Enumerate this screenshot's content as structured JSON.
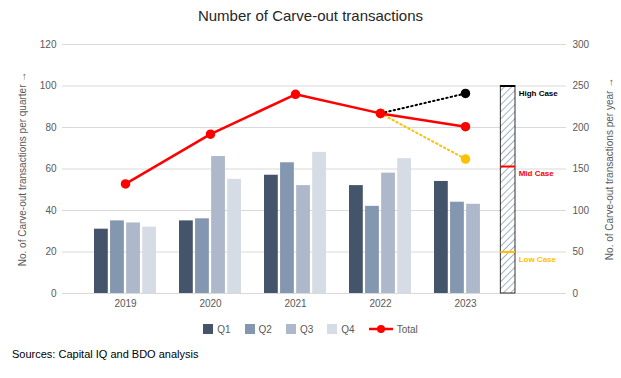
{
  "chart_data": {
    "type": "bar",
    "title": "Number of Carve-out transactions",
    "caption": "Sources: Capital IQ and BDO analysis",
    "ylabel": "No. of Carve-out transactions per quarter",
    "y2label": "No. of Carve-out transactions per year",
    "categories": [
      "2019",
      "2020",
      "2021",
      "2022",
      "2023"
    ],
    "series": [
      {
        "name": "Q1",
        "type": "bar",
        "color": "#44546a",
        "values": [
          31,
          35,
          57,
          52,
          54
        ]
      },
      {
        "name": "Q2",
        "type": "bar",
        "color": "#8497b0",
        "values": [
          35,
          36,
          63,
          42,
          44
        ]
      },
      {
        "name": "Q3",
        "type": "bar",
        "color": "#adb9ca",
        "values": [
          34,
          66,
          52,
          58,
          43
        ]
      },
      {
        "name": "Q4",
        "type": "bar",
        "color": "#d6dce5",
        "values": [
          32,
          55,
          68,
          65,
          null
        ]
      },
      {
        "name": "Total",
        "type": "line",
        "axis": "y2",
        "color": "#ff0000",
        "marker": "circle",
        "values": [
          132,
          192,
          240,
          217,
          201
        ]
      }
    ],
    "scenarios": {
      "category": "2023",
      "levels": [
        {
          "label": "High Case",
          "value": 250,
          "color": "#000000",
          "projection": [
            null,
            null,
            null,
            217,
            241
          ],
          "line_style": "dotted",
          "marker": "circle"
        },
        {
          "label": "Mid Case",
          "value": 153,
          "color": "#ff0000"
        },
        {
          "label": "Low Case",
          "value": 50,
          "color": "#ffc000",
          "projection": [
            null,
            null,
            null,
            217,
            162
          ],
          "line_style": "dotted",
          "marker": "circle"
        }
      ]
    },
    "ylim": [
      0,
      120
    ],
    "yticks": [
      0,
      20,
      40,
      60,
      80,
      100,
      120
    ],
    "y2lim": [
      0,
      300
    ],
    "y2ticks": [
      0,
      50,
      100,
      150,
      200,
      250,
      300
    ],
    "grid": true,
    "legend": "bottom"
  }
}
